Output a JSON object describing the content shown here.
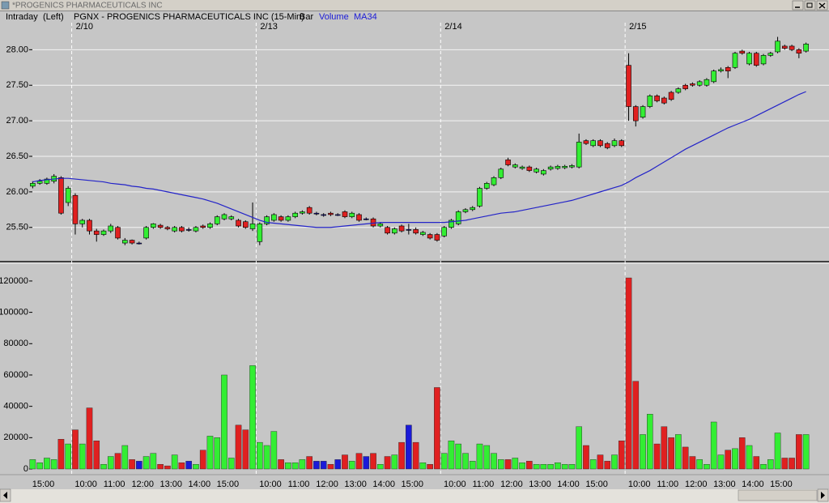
{
  "window": {
    "title": "*PROGENICS PHARMACEUTICALS INC"
  },
  "header": {
    "mode": "Intraday",
    "axis": "(Left)",
    "symbol": "PGNX - PROGENICS PHARMACEUTICALS INC (15-Min)",
    "style": "Bar"
  },
  "chart_data": [
    {
      "type": "candlestick",
      "sessions": [
        {
          "label": "2/10",
          "start": 6
        },
        {
          "label": "2/13",
          "start": 32
        },
        {
          "label": "2/14",
          "start": 58
        },
        {
          "label": "2/15",
          "start": 84
        }
      ],
      "colors": {
        "up": "#33ee33",
        "down": "#e02020",
        "flat": "#1a1ad8"
      },
      "open": [
        26.08,
        26.12,
        26.12,
        26.15,
        26.2,
        25.85,
        25.95,
        25.55,
        25.6,
        25.45,
        25.4,
        25.45,
        25.5,
        25.28,
        25.32,
        25.28,
        25.35,
        25.5,
        25.53,
        25.5,
        25.45,
        25.5,
        25.47,
        25.45,
        25.52,
        25.5,
        25.55,
        25.62,
        25.62,
        25.6,
        25.58,
        25.48,
        25.3,
        25.55,
        25.6,
        25.65,
        25.6,
        25.65,
        25.7,
        25.78,
        25.7,
        25.68,
        25.7,
        25.68,
        25.72,
        25.65,
        25.68,
        25.62,
        25.62,
        25.52,
        25.5,
        25.42,
        25.52,
        25.47,
        25.47,
        25.4,
        25.4,
        25.4,
        25.38,
        25.5,
        25.55,
        25.72,
        25.75,
        25.8,
        26.05,
        26.1,
        26.2,
        26.45,
        26.35,
        26.33,
        26.35,
        26.28,
        26.25,
        26.32,
        26.33,
        26.34,
        26.35,
        26.35,
        26.72,
        26.65,
        26.72,
        26.68,
        26.65,
        26.72,
        27.78,
        27.2,
        27.05,
        27.2,
        27.35,
        27.32,
        27.4,
        27.4,
        27.5,
        27.52,
        27.5,
        27.5,
        27.55,
        27.7,
        27.75,
        27.75,
        27.98,
        27.8,
        27.95,
        27.8,
        27.92,
        27.97,
        28.05,
        28.05,
        28.0,
        27.98
      ],
      "high": [
        26.15,
        26.18,
        26.2,
        26.25,
        26.22,
        26.08,
        25.98,
        25.62,
        25.62,
        25.48,
        25.47,
        25.55,
        25.52,
        25.35,
        25.33,
        25.3,
        25.52,
        25.56,
        25.55,
        25.52,
        25.52,
        25.52,
        25.5,
        25.52,
        25.54,
        25.57,
        25.67,
        25.7,
        25.67,
        25.62,
        25.6,
        25.85,
        25.57,
        25.67,
        25.7,
        25.67,
        25.67,
        25.72,
        25.74,
        25.8,
        25.72,
        25.7,
        25.72,
        25.7,
        25.74,
        25.72,
        25.7,
        25.64,
        25.64,
        25.57,
        25.52,
        25.5,
        25.54,
        25.55,
        25.5,
        25.45,
        25.42,
        25.42,
        25.52,
        25.62,
        25.74,
        25.77,
        25.8,
        26.07,
        26.14,
        26.22,
        26.34,
        26.48,
        26.4,
        26.37,
        26.37,
        26.34,
        26.32,
        26.37,
        26.38,
        26.38,
        26.39,
        26.82,
        26.74,
        26.74,
        26.74,
        26.7,
        26.75,
        26.74,
        27.95,
        27.22,
        27.22,
        27.37,
        27.37,
        27.34,
        27.42,
        27.47,
        27.52,
        27.54,
        27.57,
        27.6,
        27.72,
        27.75,
        27.77,
        27.97,
        28.0,
        27.97,
        27.97,
        27.94,
        27.97,
        28.18,
        28.07,
        28.07,
        28.02,
        28.1
      ],
      "low": [
        26.05,
        26.1,
        26.1,
        26.12,
        25.68,
        25.8,
        25.4,
        25.5,
        25.4,
        25.3,
        25.38,
        25.42,
        25.33,
        25.25,
        25.26,
        25.26,
        25.33,
        25.48,
        25.48,
        25.46,
        25.43,
        25.43,
        25.44,
        25.43,
        25.48,
        25.48,
        25.53,
        25.6,
        25.6,
        25.5,
        25.48,
        25.45,
        25.25,
        25.53,
        25.58,
        25.58,
        25.58,
        25.63,
        25.68,
        25.68,
        25.67,
        25.65,
        25.66,
        25.66,
        25.63,
        25.63,
        25.58,
        25.6,
        25.5,
        25.5,
        25.4,
        25.4,
        25.43,
        25.4,
        25.4,
        25.38,
        25.33,
        25.3,
        25.36,
        25.48,
        25.53,
        25.7,
        25.73,
        25.78,
        26.03,
        26.08,
        26.18,
        26.36,
        26.33,
        26.31,
        26.28,
        26.26,
        26.23,
        26.3,
        26.31,
        26.32,
        26.33,
        26.33,
        26.66,
        26.63,
        26.63,
        26.6,
        26.63,
        26.63,
        27.0,
        26.92,
        27.03,
        27.18,
        27.26,
        27.23,
        27.28,
        27.38,
        27.43,
        27.48,
        27.48,
        27.48,
        27.53,
        27.68,
        27.6,
        27.73,
        27.93,
        27.78,
        27.76,
        27.78,
        27.9,
        27.95,
        28.0,
        27.98,
        27.88,
        27.96
      ],
      "close": [
        26.12,
        26.15,
        26.18,
        26.22,
        25.7,
        26.05,
        25.55,
        25.6,
        25.45,
        25.4,
        25.45,
        25.52,
        25.35,
        25.32,
        25.28,
        25.28,
        25.5,
        25.55,
        25.5,
        25.48,
        25.5,
        25.45,
        25.47,
        25.5,
        25.5,
        25.55,
        25.65,
        25.68,
        25.65,
        25.52,
        25.5,
        25.55,
        25.55,
        25.65,
        25.68,
        25.6,
        25.65,
        25.7,
        25.72,
        25.7,
        25.7,
        25.68,
        25.68,
        25.68,
        25.65,
        25.7,
        25.6,
        25.62,
        25.52,
        25.55,
        25.42,
        25.48,
        25.45,
        25.47,
        25.42,
        25.43,
        25.35,
        25.32,
        25.5,
        25.6,
        25.72,
        25.75,
        25.78,
        26.05,
        26.12,
        26.2,
        26.32,
        26.38,
        26.38,
        26.35,
        26.3,
        26.32,
        26.3,
        26.35,
        26.36,
        26.36,
        26.37,
        26.7,
        26.68,
        26.72,
        26.65,
        26.62,
        26.72,
        26.65,
        27.2,
        27.0,
        27.2,
        27.35,
        27.28,
        27.25,
        27.3,
        27.45,
        27.45,
        27.5,
        27.55,
        27.58,
        27.7,
        27.72,
        27.7,
        27.95,
        27.95,
        27.95,
        27.78,
        27.92,
        27.95,
        28.12,
        28.02,
        28.0,
        27.95,
        28.08
      ],
      "series": [
        {
          "name": "MA34",
          "color": "#2424c8",
          "values": [
            26.14,
            26.16,
            26.17,
            26.18,
            26.19,
            26.19,
            26.18,
            26.17,
            26.16,
            26.15,
            26.14,
            26.12,
            26.11,
            26.1,
            26.08,
            26.07,
            26.05,
            26.04,
            26.02,
            26.0,
            25.98,
            25.96,
            25.94,
            25.92,
            25.9,
            25.87,
            25.84,
            25.8,
            25.76,
            25.72,
            25.68,
            25.64,
            25.6,
            25.57,
            25.56,
            25.55,
            25.54,
            25.53,
            25.52,
            25.51,
            25.5,
            25.5,
            25.5,
            25.51,
            25.52,
            25.53,
            25.54,
            25.55,
            25.56,
            25.57,
            25.57,
            25.57,
            25.57,
            25.57,
            25.57,
            25.57,
            25.57,
            25.57,
            25.57,
            25.58,
            25.59,
            25.6,
            25.62,
            25.64,
            25.66,
            25.68,
            25.7,
            25.71,
            25.72,
            25.74,
            25.76,
            25.78,
            25.8,
            25.82,
            25.84,
            25.86,
            25.88,
            25.91,
            25.94,
            25.97,
            26.0,
            26.03,
            26.06,
            26.09,
            26.14,
            26.2,
            26.25,
            26.3,
            26.36,
            26.42,
            26.48,
            26.54,
            26.6,
            26.65,
            26.7,
            26.75,
            26.8,
            26.85,
            26.9,
            26.94,
            26.98,
            27.02,
            27.07,
            27.12,
            27.17,
            27.22,
            27.27,
            27.32,
            27.37,
            27.41
          ]
        }
      ],
      "ylim": [
        25.03,
        28.38
      ],
      "yticks": [
        {
          "value": 25.5,
          "label": "25.50"
        },
        {
          "value": 26,
          "label": "26.00"
        },
        {
          "value": 26.5,
          "label": "26.50"
        },
        {
          "value": 27,
          "label": "27.00"
        },
        {
          "value": 27.5,
          "label": "27.50"
        },
        {
          "value": 28,
          "label": "28.00"
        }
      ],
      "grid": true
    },
    {
      "type": "bar",
      "categories": [
        null,
        null,
        "15:00",
        null,
        null,
        null,
        null,
        null,
        "10:00",
        null,
        null,
        null,
        "11:00",
        null,
        null,
        null,
        "12:00",
        null,
        null,
        null,
        "13:00",
        null,
        null,
        null,
        "14:00",
        null,
        null,
        null,
        "15:00",
        null,
        null,
        null,
        null,
        null,
        "10:00",
        null,
        null,
        null,
        "11:00",
        null,
        null,
        null,
        "12:00",
        null,
        null,
        null,
        "13:00",
        null,
        null,
        null,
        "14:00",
        null,
        null,
        null,
        "15:00",
        null,
        null,
        null,
        null,
        null,
        "10:00",
        null,
        null,
        null,
        "11:00",
        null,
        null,
        null,
        "12:00",
        null,
        null,
        null,
        "13:00",
        null,
        null,
        null,
        "14:00",
        null,
        null,
        null,
        "15:00",
        null,
        null,
        null,
        null,
        null,
        "10:00",
        null,
        null,
        null,
        "11:00",
        null,
        null,
        null,
        "12:00",
        null,
        null,
        null,
        "13:00",
        null,
        null,
        null,
        "14:00",
        null,
        null,
        null,
        "15:00",
        null,
        null,
        null
      ],
      "series": [
        {
          "name": "Volume",
          "values": [
            6000,
            4000,
            7000,
            6000,
            19000,
            16000,
            25000,
            16000,
            39000,
            18000,
            3000,
            8000,
            10000,
            15000,
            6000,
            5000,
            8000,
            10000,
            3000,
            2000,
            9000,
            4000,
            5000,
            3000,
            12000,
            21000,
            20000,
            60000,
            7000,
            28000,
            25000,
            66000,
            17000,
            15000,
            24000,
            6000,
            4000,
            4000,
            6000,
            8000,
            5000,
            5000,
            3000,
            6000,
            9000,
            5000,
            10000,
            8000,
            10000,
            3000,
            8000,
            9000,
            17000,
            28000,
            17000,
            4000,
            3000,
            52000,
            10000,
            18000,
            16000,
            10000,
            5000,
            16000,
            15000,
            10000,
            6000,
            6000,
            7000,
            4000,
            5000,
            3000,
            3000,
            3000,
            4000,
            3000,
            3000,
            27000,
            15000,
            6000,
            9000,
            5000,
            9000,
            18000,
            122000,
            56000,
            22000,
            35000,
            16000,
            27000,
            20000,
            22000,
            14000,
            8000,
            6000,
            3000,
            30000,
            9000,
            12000,
            13000,
            20000,
            15000,
            8000,
            3000,
            6000,
            23000,
            7000,
            7000,
            22000,
            22000
          ]
        }
      ],
      "ylim": [
        -3100,
        130300
      ],
      "yticks": [
        0,
        20000,
        40000,
        60000,
        80000,
        100000,
        120000
      ],
      "grid": false
    }
  ]
}
